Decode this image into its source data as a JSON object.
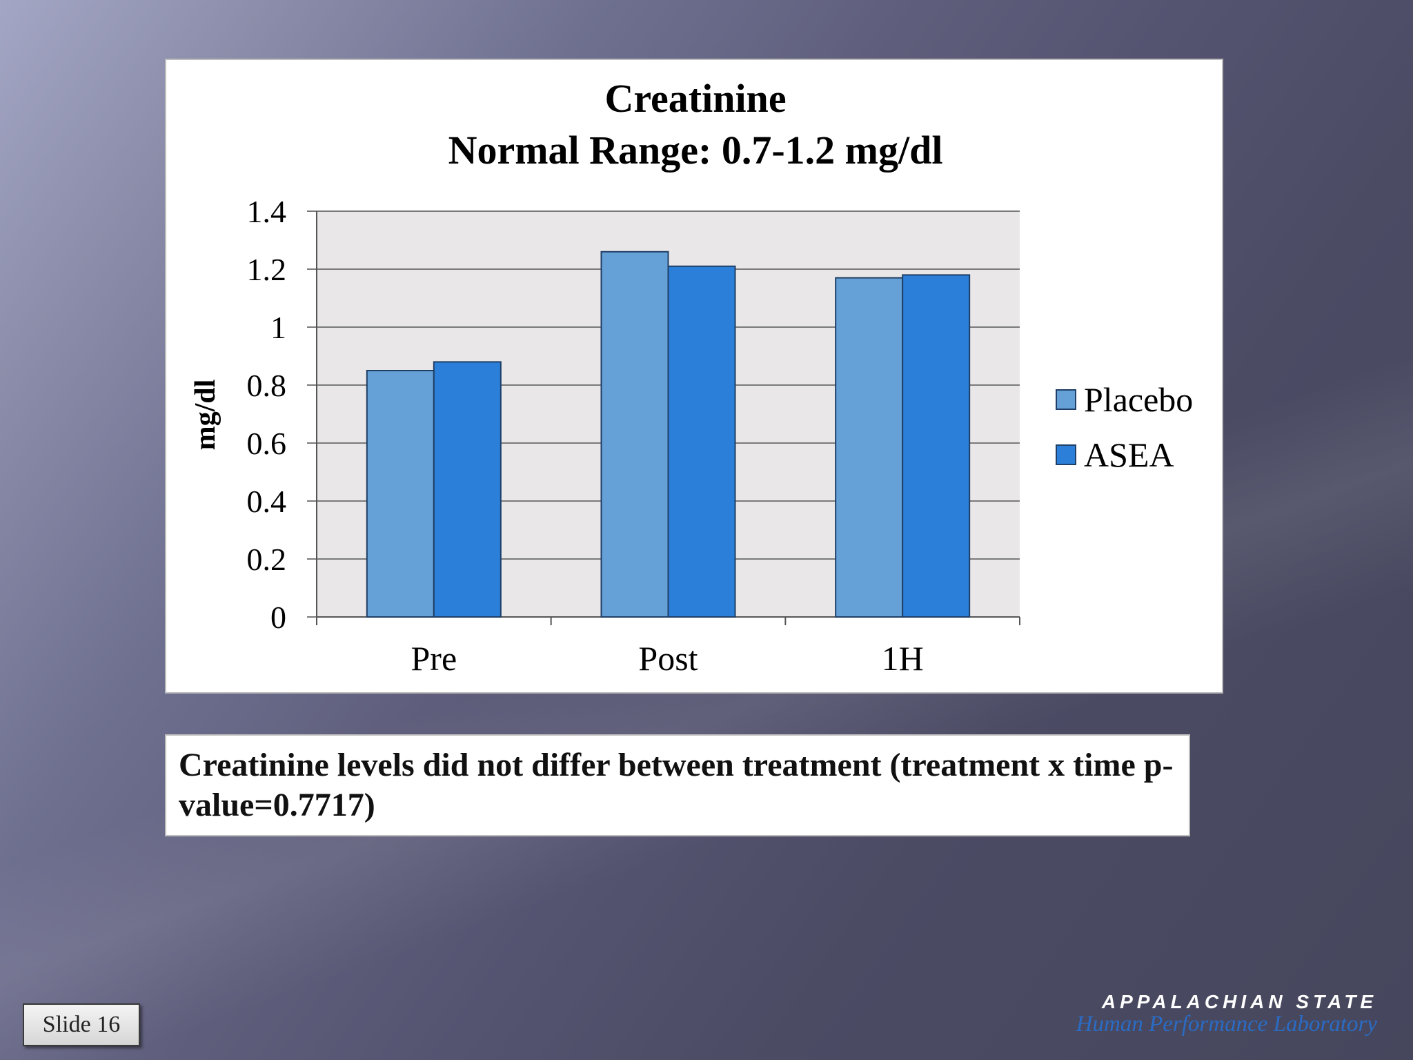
{
  "slide": {
    "caption": "Creatinine levels did not differ between treatment (treatment x time p-value=0.7717)",
    "slide_label": "Slide 16",
    "brand_name": "APPALACHIAN STATE",
    "brand_lab": "Human Performance Laboratory"
  },
  "chart_data": {
    "type": "bar",
    "title": "Creatinine",
    "subtitle": "Normal Range: 0.7-1.2 mg/dl",
    "xlabel": "",
    "ylabel": "mg/dl",
    "categories": [
      "Pre",
      "Post",
      "1H"
    ],
    "series": [
      {
        "name": "Placebo",
        "values": [
          0.85,
          1.26,
          1.17
        ],
        "color": "#65a0d6"
      },
      {
        "name": "ASEA",
        "values": [
          0.88,
          1.21,
          1.18
        ],
        "color": "#2b7fd8"
      }
    ],
    "ylim": [
      0,
      1.4
    ],
    "yticks": [
      "0",
      "0.2",
      "0.4",
      "0.6",
      "0.8",
      "1",
      "1.2",
      "1.4"
    ],
    "plot_background": "#e9e7e8",
    "grid": true,
    "legend_position": "right"
  }
}
